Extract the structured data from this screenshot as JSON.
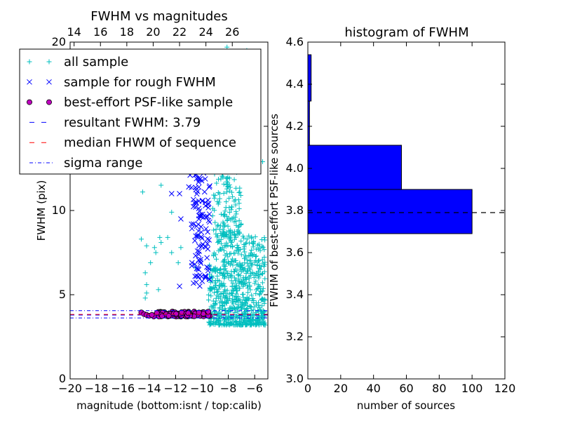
{
  "chart_data": [
    {
      "type": "scatter",
      "title": "FWHM vs magnitudes",
      "xlabel": "magnitude (bottom:isnt / top:calib)",
      "ylabel": "FWHM (pix)",
      "xlim": [
        -20,
        -5
      ],
      "ylim": [
        0,
        20
      ],
      "x_ticks": [
        -20,
        -18,
        -16,
        -14,
        -12,
        -10,
        -8,
        -6
      ],
      "x_tick_labels": [
        "−20",
        "−18",
        "−16",
        "−14",
        "−12",
        "−10",
        "−8",
        "−6"
      ],
      "y_ticks": [
        0,
        5,
        10,
        15,
        20
      ],
      "y_tick_labels": [
        "0",
        "5",
        "10",
        "15",
        "20"
      ],
      "top_axis": {
        "offset": 33.7,
        "ticks": [
          14,
          16,
          18,
          20,
          22,
          24,
          26
        ],
        "tick_labels": [
          "14",
          "16",
          "18",
          "20",
          "22",
          "24",
          "26"
        ]
      },
      "legend": {
        "placement": "upper-left",
        "entries": [
          {
            "label": "all sample",
            "marker": "plus",
            "color": "#00bfbf"
          },
          {
            "label": "sample for rough FWHM",
            "marker": "x",
            "color": "#0000ff"
          },
          {
            "label": "best-effort PSF-like sample",
            "marker": "circle",
            "color": "#bf00bf"
          },
          {
            "label": "resultant FWHM: 3.79",
            "marker": "dashed",
            "color": "#0000ff"
          },
          {
            "label": "median FHWM of sequence",
            "marker": "dashed",
            "color": "#ff0000"
          },
          {
            "label": "sigma range",
            "marker": "dashdot",
            "color": "#0000ff"
          }
        ]
      },
      "series": [
        {
          "name": "all sample",
          "color": "#00bfbf",
          "marker": "plus",
          "points": [
            [
              -14.5,
              11.1
            ],
            [
              -13.1,
              11.5
            ],
            [
              -14.6,
              8.3
            ],
            [
              -13.2,
              8.4
            ],
            [
              -13.1,
              8.1
            ],
            [
              -14.2,
              7.9
            ],
            [
              -13.6,
              7.8
            ],
            [
              -13.5,
              7.5
            ],
            [
              -13.9,
              6.9
            ],
            [
              -14.3,
              6.3
            ],
            [
              -14.2,
              5.6
            ],
            [
              -14.2,
              5.1
            ],
            [
              -13.3,
              5.3
            ],
            [
              -14.3,
              4.8
            ],
            [
              -12.3,
              9.9
            ],
            [
              -12.6,
              8.4
            ],
            [
              -12.3,
              7.5
            ],
            [
              -11.8,
              6.9
            ],
            [
              -11.6,
              7.8
            ],
            [
              -10.3,
              8.5
            ],
            [
              -10.5,
              6.6
            ],
            [
              -9.2,
              6.0
            ],
            [
              -9.0,
              10.9
            ],
            [
              -8.1,
              19.7
            ],
            [
              -7.4,
              19.3
            ],
            [
              -6.6,
              19.5
            ],
            [
              -7.0,
              14.3
            ],
            [
              -6.7,
              15.0
            ],
            [
              -7.8,
              17.2
            ],
            [
              -6.2,
              13.6
            ],
            [
              -5.4,
              12.9
            ]
          ],
          "clouds": [
            {
              "x_range": [
                -9.5,
                -5.2
              ],
              "y_range": [
                3.2,
                8.5
              ],
              "count": 700
            },
            {
              "x_range": [
                -9.2,
                -7.0
              ],
              "y_range": [
                8.5,
                14.5
              ],
              "count": 170
            },
            {
              "x_range": [
                -9.0,
                -6.5
              ],
              "y_range": [
                14.5,
                18.5
              ],
              "count": 45
            }
          ]
        },
        {
          "name": "sample for rough FWHM",
          "color": "#0000ff",
          "marker": "x",
          "points": [
            [
              -12.3,
              11.0
            ],
            [
              -11.7,
              11.0
            ],
            [
              -11.6,
              9.5
            ],
            [
              -11.0,
              11.4
            ],
            [
              -11.7,
              5.5
            ],
            [
              -10.9,
              12.1
            ],
            [
              -10.0,
              12.3
            ]
          ],
          "clouds": [
            {
              "x_range": [
                -10.8,
                -9.4
              ],
              "y_range": [
                5.5,
                11.5
              ],
              "count": 95
            },
            {
              "x_range": [
                -10.6,
                -9.7
              ],
              "y_range": [
                11.5,
                12.3
              ],
              "count": 10
            }
          ]
        },
        {
          "name": "best-effort PSF-like sample",
          "color": "#bf00bf",
          "marker": "circle",
          "points": [
            [
              -14.6,
              3.95
            ],
            [
              -14.4,
              3.85
            ],
            [
              -14.2,
              3.8
            ],
            [
              -14.0,
              3.75
            ],
            [
              -13.8,
              3.8
            ]
          ],
          "clouds": [
            {
              "x_range": [
                -13.7,
                -9.4
              ],
              "y_range": [
                3.7,
                4.0
              ],
              "count": 95
            }
          ]
        }
      ],
      "lines": [
        {
          "name": "resultant FWHM: 3.79",
          "y": 3.79,
          "style": "dashed",
          "color": "#0000ff"
        },
        {
          "name": "median FHWM of sequence",
          "y": 3.83,
          "style": "dashed",
          "color": "#ff0000"
        },
        {
          "name": "sigma range",
          "y": 4.05,
          "style": "dashdot",
          "color": "#0000ff"
        },
        {
          "name": "sigma range",
          "y": 3.62,
          "style": "dashdot",
          "color": "#0000ff"
        }
      ]
    },
    {
      "type": "bar",
      "orientation": "horizontal",
      "title": "histogram of FWHM",
      "xlabel": "number of sources",
      "ylabel": "FWHM of best-effort PSF-like sources",
      "xlim": [
        0,
        120
      ],
      "ylim": [
        3.0,
        4.6
      ],
      "x_ticks": [
        0,
        20,
        40,
        60,
        80,
        100,
        120
      ],
      "x_tick_labels": [
        "0",
        "20",
        "40",
        "60",
        "80",
        "100",
        "120"
      ],
      "y_ticks": [
        3.0,
        3.2,
        3.4,
        3.6,
        3.8,
        4.0,
        4.2,
        4.4,
        4.6
      ],
      "y_tick_labels": [
        "3.0",
        "3.2",
        "3.4",
        "3.6",
        "3.8",
        "4.0",
        "4.2",
        "4.4",
        "4.6"
      ],
      "bar_color": "#0000ff",
      "bins": [
        {
          "low": 3.69,
          "high": 3.9,
          "count": 100
        },
        {
          "low": 3.9,
          "high": 4.11,
          "count": 57
        },
        {
          "low": 4.11,
          "high": 4.32,
          "count": 1
        },
        {
          "low": 4.32,
          "high": 4.54,
          "count": 2
        }
      ],
      "reference_line": {
        "y": 3.79,
        "style": "dashed",
        "color": "#000000"
      }
    }
  ]
}
